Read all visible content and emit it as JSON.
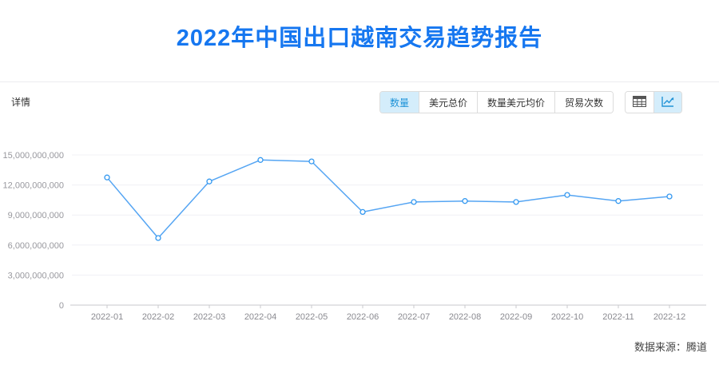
{
  "title": "2022年中国出口越南交易趋势报告",
  "toolbar": {
    "section_label": "详情",
    "tabs": [
      {
        "label": "数量",
        "selected": true
      },
      {
        "label": "美元总价",
        "selected": false
      },
      {
        "label": "数量美元均价",
        "selected": false
      },
      {
        "label": "贸易次数",
        "selected": false
      }
    ],
    "view_toggles": [
      {
        "icon": "table-icon",
        "selected": false
      },
      {
        "icon": "line-chart-icon",
        "selected": true
      }
    ]
  },
  "chart_data": {
    "type": "line",
    "title": "",
    "xlabel": "",
    "ylabel": "",
    "categories": [
      "2022-01",
      "2022-02",
      "2022-03",
      "2022-04",
      "2022-05",
      "2022-06",
      "2022-07",
      "2022-08",
      "2022-09",
      "2022-10",
      "2022-11",
      "2022-12"
    ],
    "series": [
      {
        "name": "数量",
        "values": [
          12750000000,
          6700000000,
          12350000000,
          14500000000,
          14350000000,
          9300000000,
          10300000000,
          10400000000,
          10300000000,
          11000000000,
          10400000000,
          10850000000
        ]
      }
    ],
    "ylim": [
      0,
      15000000000
    ],
    "y_ticks": [
      0,
      3000000000,
      6000000000,
      9000000000,
      12000000000,
      15000000000
    ],
    "grid": true,
    "legend_position": "none",
    "marker": "hollow-circle"
  },
  "footer": {
    "source_label": "数据来源：腾道"
  },
  "colors": {
    "title_blue": "#1677f0",
    "line": "#55a5f3",
    "marker_stroke": "#3398f0",
    "tab_selected_bg": "#d4edfb",
    "tab_selected_text": "#1e93d8",
    "gridline": "#f0f0f5",
    "axis": "#c9c9ce",
    "y_label": "#98989e",
    "x_label": "#8a8a90",
    "icon_gray": "#555555"
  }
}
